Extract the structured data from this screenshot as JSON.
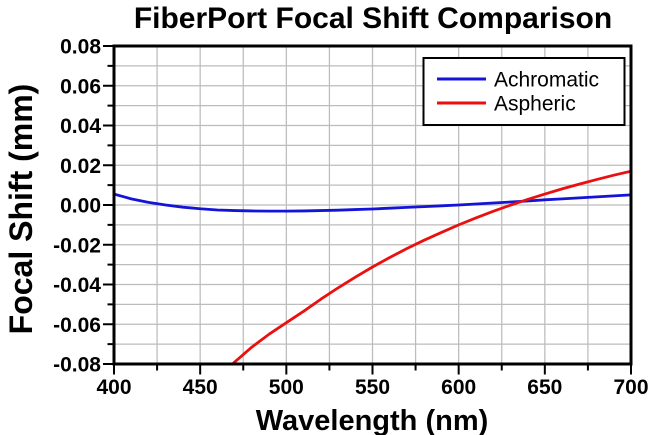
{
  "title": "FiberPort Focal Shift Comparison",
  "chart_data": {
    "type": "line",
    "title": "FiberPort Focal Shift Comparison",
    "xlabel": "Wavelength (nm)",
    "ylabel": "Focal Shift (mm)",
    "xlim": [
      400,
      700
    ],
    "ylim": [
      -0.08,
      0.08
    ],
    "x_tick_labels": [
      "400",
      "450",
      "500",
      "550",
      "600",
      "650",
      "700"
    ],
    "x_major_ticks": [
      400,
      450,
      500,
      550,
      600,
      650,
      700
    ],
    "x_minor_step": 25,
    "y_tick_labels": [
      "0.08",
      "0.06",
      "0.04",
      "0.02",
      "0.00",
      "-0.02",
      "-0.04",
      "-0.06",
      "-0.08"
    ],
    "y_major_ticks": [
      0.08,
      0.06,
      0.04,
      0.02,
      0.0,
      -0.02,
      -0.04,
      -0.06,
      -0.08
    ],
    "y_minor_step": 0.01,
    "grid": "minor",
    "legend_position": "top-right",
    "series": [
      {
        "name": "Achromatic",
        "color": "#1414d8",
        "x": [
          400,
          410,
          420,
          430,
          440,
          450,
          460,
          470,
          480,
          490,
          500,
          510,
          520,
          530,
          540,
          550,
          560,
          570,
          580,
          590,
          600,
          610,
          620,
          630,
          640,
          650,
          660,
          670,
          680,
          690,
          700
        ],
        "y": [
          0.0055,
          0.0031,
          0.0013,
          0.0,
          -0.0011,
          -0.0019,
          -0.0025,
          -0.0028,
          -0.003,
          -0.0031,
          -0.0031,
          -0.003,
          -0.0028,
          -0.0026,
          -0.0023,
          -0.002,
          -0.0016,
          -0.0012,
          -0.0008,
          -0.0004,
          0.0,
          0.0005,
          0.001,
          0.0015,
          0.002,
          0.0026,
          0.0031,
          0.0036,
          0.0041,
          0.0046,
          0.0051
        ]
      },
      {
        "name": "Aspheric",
        "color": "#ea1010",
        "x": [
          460,
          470,
          480,
          490,
          500,
          510,
          520,
          530,
          540,
          550,
          560,
          570,
          580,
          590,
          600,
          610,
          620,
          630,
          640,
          650,
          660,
          670,
          680,
          690,
          700
        ],
        "y": [
          -0.0875,
          -0.079,
          -0.0715,
          -0.065,
          -0.0592,
          -0.0535,
          -0.0474,
          -0.0417,
          -0.0363,
          -0.0312,
          -0.0264,
          -0.0219,
          -0.0177,
          -0.0138,
          -0.01,
          -0.0065,
          -0.0032,
          -0.0001,
          0.0028,
          0.0055,
          0.0081,
          0.0105,
          0.0128,
          0.015,
          0.017
        ]
      }
    ]
  },
  "colors": {
    "grid": "#bcbcbc",
    "axis": "#000000",
    "background": "#ffffff",
    "text": "#000000"
  }
}
